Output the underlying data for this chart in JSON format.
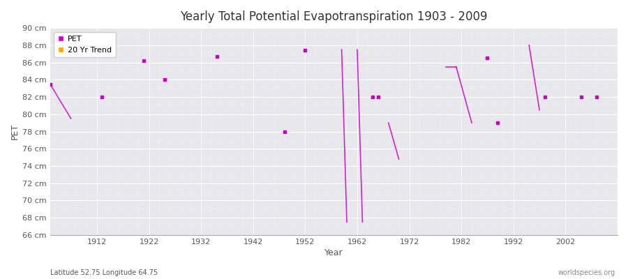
{
  "title": "Yearly Total Potential Evapotranspiration 1903 - 2009",
  "xlabel": "Year",
  "ylabel": "PET",
  "subtitle_left": "Latitude 52.75 Longitude 64.75",
  "subtitle_right": "worldspecies.org",
  "ylim": [
    66,
    90
  ],
  "ytick_labels": [
    "66 cm",
    "68 cm",
    "70 cm",
    "72 cm",
    "74 cm",
    "76 cm",
    "78 cm",
    "80 cm",
    "82 cm",
    "84 cm",
    "86 cm",
    "88 cm",
    "90 cm"
  ],
  "ytick_values": [
    66,
    68,
    70,
    72,
    74,
    76,
    78,
    80,
    82,
    84,
    86,
    88,
    90
  ],
  "xlim": [
    1903,
    2012
  ],
  "xtick_values": [
    1912,
    1922,
    1932,
    1942,
    1952,
    1962,
    1972,
    1982,
    1992,
    2002
  ],
  "pet_color": "#cc00cc",
  "trend_color": "#ffa500",
  "bg_color": "#ffffff",
  "plot_bg_color": "#e8e8ec",
  "grid_color": "#ffffff",
  "pet_data": [
    [
      1903,
      83.5
    ],
    [
      1913,
      82.0
    ],
    [
      1921,
      86.2
    ],
    [
      1925,
      84.0
    ],
    [
      1935,
      86.7
    ],
    [
      1948,
      78.0
    ],
    [
      1952,
      87.4
    ],
    [
      1965,
      82.0
    ],
    [
      1966,
      82.0
    ],
    [
      1987,
      86.5
    ],
    [
      1989,
      79.0
    ],
    [
      1998,
      82.0
    ],
    [
      2005,
      82.0
    ],
    [
      2008,
      82.0
    ]
  ],
  "trend_segments": [
    [
      [
        1903,
        83.5
      ],
      [
        1907,
        79.5
      ]
    ],
    [
      [
        1959,
        87.5
      ],
      [
        1960,
        67.5
      ]
    ],
    [
      [
        1962,
        87.5
      ],
      [
        1963,
        67.5
      ]
    ],
    [
      [
        1968,
        79.0
      ],
      [
        1970,
        74.8
      ]
    ],
    [
      [
        1979,
        85.5
      ],
      [
        1981,
        85.5
      ]
    ],
    [
      [
        1981,
        85.5
      ],
      [
        1984,
        79.0
      ]
    ],
    [
      [
        1995,
        88.0
      ],
      [
        1997,
        80.5
      ]
    ]
  ]
}
